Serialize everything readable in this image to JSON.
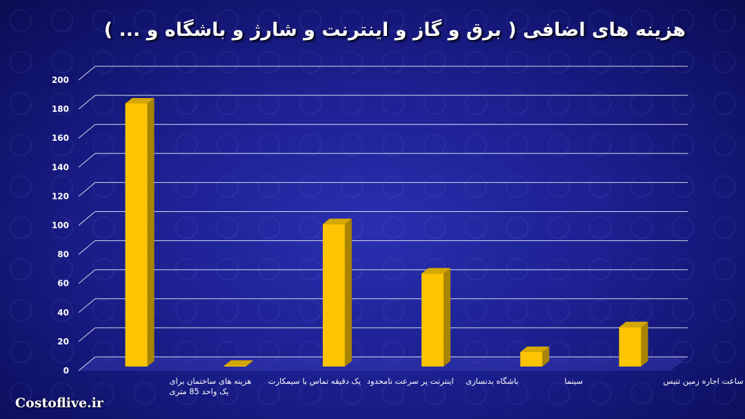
{
  "title": "هزینه های اضافی ( برق و گاز و اینترنت و شارژ و باشگاه و ... )",
  "watermark": "Costoflive.ir",
  "colors": {
    "bar_front": "#ffc400",
    "bar_side": "#a88400",
    "bar_top": "#d4a800",
    "grid": "#ffffff",
    "text": "#ffffff"
  },
  "chart_data": {
    "type": "bar",
    "title": "هزینه های اضافی ( برق و گاز و اینترنت و شارژ و باشگاه و ... )",
    "categories": [
      [
        "هزینه های ساختمان برای",
        "یک واحد 85 متری"
      ],
      [
        "یک دقیقه تماس با سیمکارت"
      ],
      [
        "اینترنت پر سرعت نامحدود"
      ],
      [
        "باشگاه بدنسازی"
      ],
      [
        "سینما"
      ],
      [
        "یک ساعت اجاره زمین تنیس"
      ]
    ],
    "values": [
      181,
      0.5,
      98,
      64,
      10,
      27
    ],
    "ylim": [
      0,
      200
    ],
    "yticks": [
      0,
      20,
      40,
      60,
      80,
      100,
      120,
      140,
      160,
      180,
      200
    ],
    "grid": true,
    "legend": "none"
  }
}
